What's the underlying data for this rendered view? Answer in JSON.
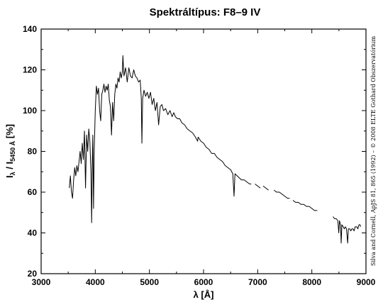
{
  "chart_data": {
    "type": "line",
    "title": "Spektráltípus: F8–9 IV",
    "xlabel": {
      "base": "λ [Å]"
    },
    "ylabel": {
      "main": "I",
      "sub1": "λ",
      "mid": " / I",
      "sub2": "5450 Å",
      "unit": " [%]"
    },
    "xlim": [
      3000,
      9000
    ],
    "ylim": [
      20,
      140
    ],
    "x_ticks": [
      "3000",
      "4000",
      "5000",
      "6000",
      "7000",
      "8000",
      "9000"
    ],
    "y_ticks": [
      "20",
      "40",
      "60",
      "80",
      "100",
      "120",
      "140"
    ],
    "grid": false,
    "credit": "Silva and Cornell, ApJS 81, 865 (1992) – © 2008 ELTE Gothard Obszervatórium",
    "series": [
      {
        "segments": [
          [
            [
              3520,
              62
            ],
            [
              3540,
              68
            ],
            [
              3560,
              60
            ],
            [
              3580,
              57
            ],
            [
              3600,
              66
            ],
            [
              3620,
              72
            ],
            [
              3640,
              68
            ],
            [
              3660,
              73
            ],
            [
              3680,
              70
            ],
            [
              3700,
              75
            ],
            [
              3720,
              80
            ],
            [
              3740,
              74
            ],
            [
              3760,
              84
            ],
            [
              3780,
              76
            ],
            [
              3800,
              90
            ],
            [
              3820,
              62
            ],
            [
              3840,
              88
            ],
            [
              3860,
              80
            ],
            [
              3880,
              91
            ],
            [
              3900,
              85
            ],
            [
              3920,
              70
            ],
            [
              3933,
              45
            ],
            [
              3945,
              75
            ],
            [
              3955,
              88
            ],
            [
              3968,
              52
            ],
            [
              3980,
              80
            ],
            [
              4000,
              100
            ],
            [
              4020,
              112
            ],
            [
              4040,
              108
            ],
            [
              4060,
              111
            ],
            [
              4080,
              100
            ],
            [
              4100,
              95
            ],
            [
              4120,
              108
            ],
            [
              4140,
              110
            ],
            [
              4160,
              113
            ],
            [
              4180,
              109
            ],
            [
              4200,
              112
            ],
            [
              4220,
              110
            ],
            [
              4240,
              113
            ],
            [
              4260,
              105
            ],
            [
              4280,
              102
            ],
            [
              4300,
              88
            ],
            [
              4320,
              104
            ],
            [
              4340,
              95
            ],
            [
              4360,
              108
            ],
            [
              4380,
              113
            ],
            [
              4400,
              111
            ],
            [
              4420,
              116
            ],
            [
              4440,
              114
            ],
            [
              4460,
              119
            ],
            [
              4480,
              116
            ],
            [
              4500,
              119
            ],
            [
              4510,
              127
            ],
            [
              4530,
              117
            ],
            [
              4560,
              121
            ],
            [
              4590,
              114
            ],
            [
              4620,
              121
            ],
            [
              4650,
              117
            ],
            [
              4680,
              116
            ],
            [
              4710,
              120
            ],
            [
              4740,
              117
            ],
            [
              4770,
              116
            ],
            [
              4800,
              114
            ],
            [
              4830,
              115
            ],
            [
              4850,
              106
            ],
            [
              4861,
              84
            ],
            [
              4875,
              106
            ],
            [
              4900,
              110
            ],
            [
              4930,
              107
            ],
            [
              4960,
              109
            ],
            [
              4990,
              106
            ],
            [
              5020,
              109
            ],
            [
              5050,
              103
            ],
            [
              5080,
              106
            ],
            [
              5110,
              100
            ],
            [
              5140,
              104
            ],
            [
              5170,
              93
            ],
            [
              5200,
              102
            ],
            [
              5230,
              103
            ],
            [
              5260,
              100
            ],
            [
              5300,
              101
            ],
            [
              5340,
              98
            ],
            [
              5380,
              100
            ],
            [
              5420,
              97
            ],
            [
              5450,
              99
            ],
            [
              5480,
              97
            ],
            [
              5520,
              96
            ],
            [
              5560,
              96
            ],
            [
              5600,
              94
            ],
            [
              5650,
              93
            ],
            [
              5700,
              91
            ],
            [
              5750,
              90
            ],
            [
              5800,
              89
            ],
            [
              5850,
              87
            ],
            [
              5890,
              85
            ],
            [
              5900,
              87
            ],
            [
              5950,
              85
            ],
            [
              6000,
              84
            ],
            [
              6050,
              82
            ],
            [
              6100,
              81
            ],
            [
              6150,
              79
            ],
            [
              6200,
              79
            ],
            [
              6250,
              77
            ],
            [
              6300,
              76
            ],
            [
              6350,
              75
            ],
            [
              6400,
              73
            ],
            [
              6450,
              72
            ],
            [
              6500,
              71
            ],
            [
              6540,
              69
            ],
            [
              6563,
              58
            ],
            [
              6580,
              69
            ],
            [
              6620,
              68
            ],
            [
              6660,
              67
            ],
            [
              6700,
              66
            ],
            [
              6750,
              66
            ],
            [
              6800,
              65
            ],
            [
              6850,
              64
            ],
            [
              6880,
              64
            ]
          ],
          [
            [
              6950,
              64
            ],
            [
              7000,
              63
            ],
            [
              7050,
              62
            ]
          ],
          [
            [
              7100,
              63
            ],
            [
              7150,
              62
            ],
            [
              7200,
              61
            ]
          ],
          [
            [
              7300,
              61
            ],
            [
              7350,
              60
            ],
            [
              7400,
              60
            ],
            [
              7450,
              59
            ],
            [
              7500,
              58
            ],
            [
              7550,
              57
            ],
            [
              7590,
              57
            ]
          ],
          [
            [
              7650,
              56
            ],
            [
              7700,
              55
            ],
            [
              7750,
              55
            ],
            [
              7800,
              54
            ],
            [
              7850,
              54
            ],
            [
              7900,
              53
            ],
            [
              7950,
              53
            ],
            [
              8000,
              52
            ],
            [
              8050,
              51
            ],
            [
              8100,
              51
            ]
          ],
          [
            [
              8390,
              48
            ],
            [
              8420,
              47
            ],
            [
              8450,
              47
            ],
            [
              8480,
              46
            ],
            [
              8498,
              40
            ],
            [
              8510,
              46
            ],
            [
              8530,
              44
            ],
            [
              8542,
              35
            ],
            [
              8555,
              44
            ],
            [
              8580,
              43
            ],
            [
              8600,
              42
            ],
            [
              8620,
              43
            ],
            [
              8640,
              42
            ],
            [
              8662,
              35
            ],
            [
              8675,
              42
            ],
            [
              8700,
              42
            ],
            [
              8720,
              41
            ],
            [
              8740,
              42
            ],
            [
              8760,
              42
            ],
            [
              8780,
              41
            ],
            [
              8800,
              43
            ],
            [
              8830,
              43
            ],
            [
              8850,
              42
            ],
            [
              8870,
              44
            ],
            [
              8890,
              44
            ],
            [
              8900,
              43
            ]
          ]
        ]
      }
    ]
  }
}
